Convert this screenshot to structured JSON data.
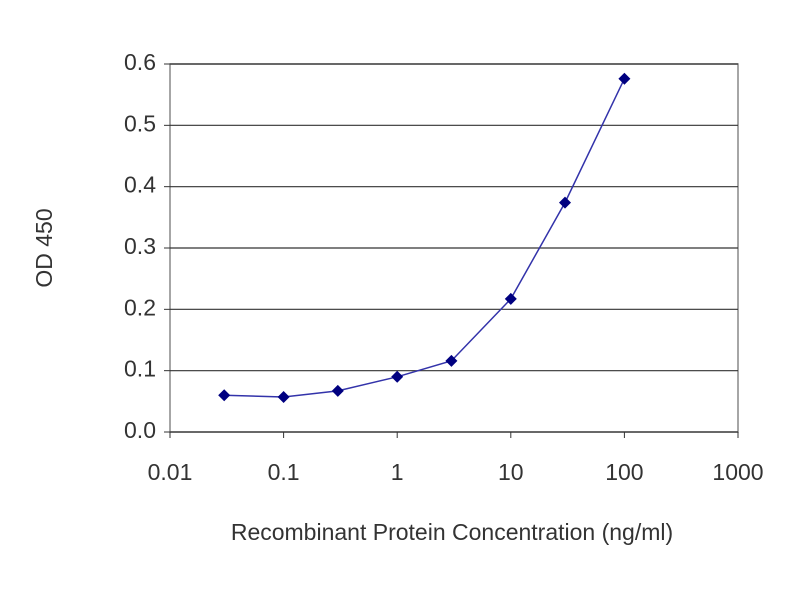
{
  "chart_data": {
    "type": "line",
    "x_label": "Recombinant Protein Concentration (ng/ml)",
    "y_label": "OD 450",
    "x": [
      0.03,
      0.1,
      0.3,
      1,
      3,
      10,
      30,
      100
    ],
    "series": [
      {
        "color": "#000080",
        "values": [
          0.06,
          0.057,
          0.067,
          0.09,
          0.116,
          0.217,
          0.374,
          0.576
        ]
      }
    ],
    "xscale": "log",
    "xlim": [
      0.01,
      1000
    ],
    "xticks": [
      0.01,
      0.1,
      1,
      10,
      100,
      1000
    ],
    "ylim": [
      0,
      0.6
    ],
    "yticks": [
      {
        "value": 0,
        "label": "0.0"
      },
      0.1,
      0.2,
      0.3,
      0.4,
      0.5,
      0.6
    ],
    "grid": true
  }
}
